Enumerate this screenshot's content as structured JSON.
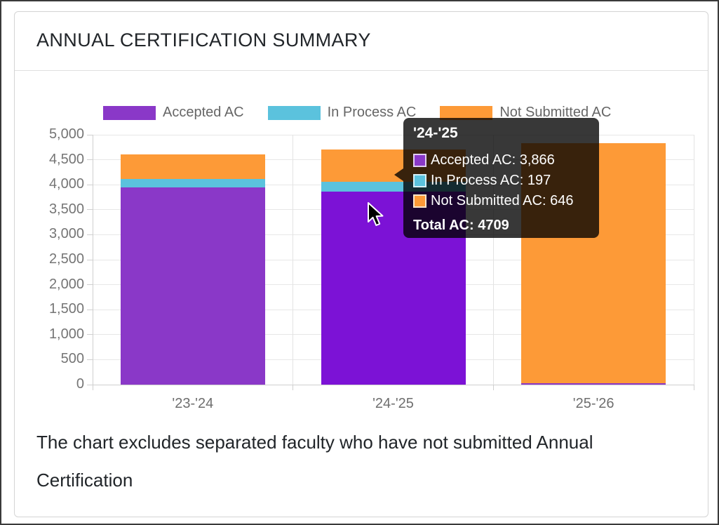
{
  "card": {
    "title": "ANNUAL CERTIFICATION SUMMARY",
    "caption": "The chart excludes separated faculty who have not submitted Annual Certification"
  },
  "legend": {
    "items": [
      {
        "label": "Accepted AC",
        "color": "#8a38c8"
      },
      {
        "label": "In Process AC",
        "color": "#5bc2dd"
      },
      {
        "label": "Not Submitted AC",
        "color": "#fd9a37"
      }
    ]
  },
  "chart_data": {
    "type": "bar",
    "stacked": true,
    "title": "ANNUAL CERTIFICATION SUMMARY",
    "categories": [
      "'23-'24",
      "'24-'25",
      "'25-'26"
    ],
    "series": [
      {
        "name": "Accepted AC",
        "color": "#8a38c8",
        "hover_color": "#7c12d6",
        "values": [
          3950,
          3866,
          30
        ]
      },
      {
        "name": "In Process AC",
        "color": "#5bc2dd",
        "values": [
          160,
          197,
          0
        ]
      },
      {
        "name": "Not Submitted AC",
        "color": "#fd9a37",
        "values": [
          490,
          646,
          4800
        ]
      }
    ],
    "totals": [
      4600,
      4709,
      4830
    ],
    "ylim": [
      0,
      5000
    ],
    "ytick_step": 500,
    "ytick_labels": [
      "0",
      "500",
      "1,000",
      "1,500",
      "2,000",
      "2,500",
      "3,000",
      "3,500",
      "4,000",
      "4,500",
      "5,000"
    ],
    "grid": true,
    "legend_position": "top",
    "highlighted_category": "'24-'25"
  },
  "tooltip": {
    "title": "'24-'25",
    "rows": [
      {
        "label": "Accepted AC",
        "value": "3,866",
        "color": "#8a38c8"
      },
      {
        "label": "In Process AC",
        "value": "197",
        "color": "#5bc2dd"
      },
      {
        "label": "Not Submitted AC",
        "value": "646",
        "color": "#fd9a37"
      }
    ],
    "total": "Total AC: 4709"
  }
}
